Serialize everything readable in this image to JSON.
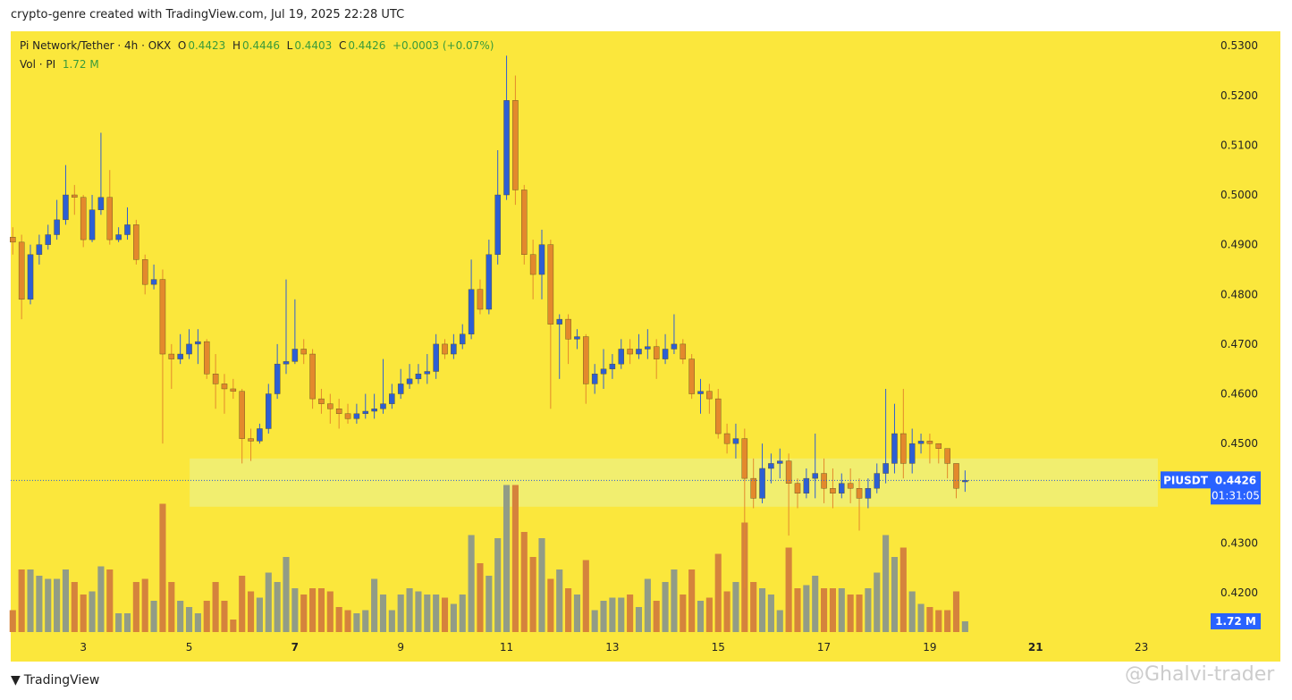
{
  "header": {
    "caption": "crypto-genre created with TradingView.com, Jul 19, 2025 22:28 UTC"
  },
  "chart_data": {
    "type": "candlestick",
    "title": "Pi Network/Tether · 4h · OKX",
    "ohlc_labels": [
      "O",
      "H",
      "L",
      "C"
    ],
    "change": "+0.0003 (+0.07%)",
    "volume_title": "Vol · PI",
    "volume_label": "1.72 M",
    "symbol": "PIUSDT",
    "countdown": "01:31:05",
    "background": "#fbe73c",
    "up_color": "#2d5fd3",
    "down_color": "#e3892c",
    "volume_up_color": "#929c86",
    "volume_down_color": "#d5833c",
    "zone_color": "#eeee78",
    "xlim": [
      1.628,
      24.156
    ],
    "ylim": [
      0.4121,
      0.5329
    ],
    "volume_ylim": [
      0,
      96
    ],
    "xticks": [
      3,
      5,
      7,
      9,
      11,
      13,
      15,
      17,
      19,
      21,
      23
    ],
    "xticks_bold": [
      7,
      21
    ],
    "yticks": [
      {
        "value": 0.42,
        "label": "0.4200"
      },
      {
        "value": 0.43,
        "label": "0.4300"
      },
      {
        "value": 0.44,
        "label": "0.4400"
      },
      {
        "value": 0.45,
        "label": "0.4500"
      },
      {
        "value": 0.46,
        "label": "0.4600"
      },
      {
        "value": 0.47,
        "label": "0.4700"
      },
      {
        "value": 0.48,
        "label": "0.4800"
      },
      {
        "value": 0.49,
        "label": "0.4900"
      },
      {
        "value": 0.5,
        "label": "0.5000"
      },
      {
        "value": 0.51,
        "label": "0.5100"
      },
      {
        "value": 0.52,
        "label": "0.5200"
      },
      {
        "value": 0.53,
        "label": "0.5300"
      }
    ],
    "zone": {
      "x": [
        5.01,
        23.31
      ],
      "y": [
        0.4373,
        0.447
      ]
    },
    "x": [
      1.6667,
      1.8333,
      2,
      2.1667,
      2.3333,
      2.5,
      2.6667,
      2.8333,
      3,
      3.1667,
      3.3333,
      3.5,
      3.6667,
      3.8333,
      4,
      4.1667,
      4.3333,
      4.5,
      4.6667,
      4.8333,
      5,
      5.1667,
      5.3333,
      5.5,
      5.6667,
      5.8333,
      6,
      6.1667,
      6.3333,
      6.5,
      6.6667,
      6.8333,
      7,
      7.1667,
      7.3333,
      7.5,
      7.6667,
      7.8333,
      8,
      8.1667,
      8.3333,
      8.5,
      8.6667,
      8.8333,
      9,
      9.1667,
      9.3333,
      9.5,
      9.6667,
      9.8333,
      10,
      10.1667,
      10.3333,
      10.5,
      10.6667,
      10.8333,
      11,
      11.1667,
      11.3333,
      11.5,
      11.6667,
      11.8333,
      12,
      12.1667,
      12.3333,
      12.5,
      12.6667,
      12.8333,
      13,
      13.1667,
      13.3333,
      13.5,
      13.6667,
      13.8333,
      14,
      14.1667,
      14.3333,
      14.5,
      14.6667,
      14.8333,
      15,
      15.1667,
      15.3333,
      15.5,
      15.6667,
      15.8333,
      16,
      16.1667,
      16.3333,
      16.5,
      16.6667,
      16.8333,
      17,
      17.1667,
      17.3333,
      17.5,
      17.6667,
      17.8333,
      18,
      18.1667,
      18.3333,
      18.5,
      18.6667,
      18.8333,
      19,
      19.1667,
      19.3333,
      19.5,
      19.6667
    ],
    "open": [
      0.4915,
      0.4905,
      0.479,
      0.488,
      0.49,
      0.492,
      0.495,
      0.5,
      0.4995,
      0.491,
      0.497,
      0.4995,
      0.491,
      0.492,
      0.494,
      0.487,
      0.482,
      0.483,
      0.468,
      0.467,
      0.468,
      0.47,
      0.4705,
      0.464,
      0.462,
      0.461,
      0.4605,
      0.451,
      0.4505,
      0.453,
      0.46,
      0.466,
      0.4665,
      0.469,
      0.468,
      0.459,
      0.458,
      0.457,
      0.456,
      0.455,
      0.456,
      0.4565,
      0.457,
      0.458,
      0.46,
      0.462,
      0.463,
      0.464,
      0.4645,
      0.47,
      0.468,
      0.47,
      0.472,
      0.481,
      0.477,
      0.488,
      0.5,
      0.519,
      0.501,
      0.488,
      0.484,
      0.49,
      0.474,
      0.475,
      0.471,
      0.4715,
      0.462,
      0.464,
      0.465,
      0.466,
      0.469,
      0.468,
      0.469,
      0.4695,
      0.467,
      0.469,
      0.47,
      0.467,
      0.46,
      0.4605,
      0.459,
      0.452,
      0.45,
      0.451,
      0.443,
      0.439,
      0.445,
      0.446,
      0.4465,
      0.442,
      0.44,
      0.443,
      0.444,
      0.441,
      0.44,
      0.442,
      0.441,
      0.439,
      0.441,
      0.444,
      0.446,
      0.452,
      0.446,
      0.45,
      0.4505,
      0.45,
      0.449,
      0.446,
      0.4423
    ],
    "high": [
      0.4935,
      0.492,
      0.49,
      0.492,
      0.494,
      0.499,
      0.506,
      0.502,
      0.5,
      0.5,
      0.5125,
      0.505,
      0.4935,
      0.4975,
      0.495,
      0.488,
      0.486,
      0.485,
      0.47,
      0.472,
      0.473,
      0.473,
      0.471,
      0.468,
      0.464,
      0.463,
      0.461,
      0.453,
      0.454,
      0.462,
      0.47,
      0.483,
      0.479,
      0.471,
      0.469,
      0.461,
      0.46,
      0.459,
      0.458,
      0.458,
      0.46,
      0.46,
      0.467,
      0.462,
      0.465,
      0.466,
      0.466,
      0.468,
      0.472,
      0.471,
      0.472,
      0.474,
      0.487,
      0.483,
      0.491,
      0.509,
      0.528,
      0.524,
      0.502,
      0.491,
      0.493,
      0.491,
      0.476,
      0.476,
      0.473,
      0.472,
      0.466,
      0.469,
      0.468,
      0.471,
      0.471,
      0.472,
      0.473,
      0.471,
      0.472,
      0.476,
      0.471,
      0.468,
      0.463,
      0.462,
      0.461,
      0.454,
      0.454,
      0.453,
      0.447,
      0.45,
      0.448,
      0.449,
      0.448,
      0.443,
      0.445,
      0.452,
      0.447,
      0.445,
      0.444,
      0.445,
      0.443,
      0.443,
      0.446,
      0.461,
      0.458,
      0.461,
      0.453,
      0.452,
      0.452,
      0.45,
      0.449,
      0.446,
      0.4446
    ],
    "low": [
      0.488,
      0.475,
      0.478,
      0.486,
      0.489,
      0.491,
      0.494,
      0.496,
      0.4895,
      0.4905,
      0.496,
      0.49,
      0.4905,
      0.491,
      0.486,
      0.48,
      0.481,
      0.45,
      0.461,
      0.466,
      0.467,
      0.466,
      0.463,
      0.457,
      0.456,
      0.459,
      0.446,
      0.4465,
      0.45,
      0.452,
      0.459,
      0.464,
      0.466,
      0.466,
      0.457,
      0.456,
      0.454,
      0.453,
      0.454,
      0.454,
      0.455,
      0.455,
      0.456,
      0.457,
      0.459,
      0.461,
      0.462,
      0.462,
      0.463,
      0.467,
      0.467,
      0.469,
      0.471,
      0.476,
      0.476,
      0.486,
      0.499,
      0.498,
      0.486,
      0.479,
      0.479,
      0.457,
      0.463,
      0.466,
      0.469,
      0.458,
      0.46,
      0.461,
      0.463,
      0.465,
      0.466,
      0.467,
      0.467,
      0.463,
      0.466,
      0.468,
      0.466,
      0.459,
      0.456,
      0.456,
      0.451,
      0.448,
      0.447,
      0.421,
      0.437,
      0.438,
      0.442,
      0.443,
      0.4315,
      0.437,
      0.439,
      0.439,
      0.438,
      0.437,
      0.439,
      0.438,
      0.4325,
      0.437,
      0.44,
      0.442,
      0.444,
      0.443,
      0.444,
      0.448,
      0.446,
      0.446,
      0.443,
      0.439,
      0.4403
    ],
    "close": [
      0.4905,
      0.479,
      0.488,
      0.49,
      0.492,
      0.495,
      0.5,
      0.4995,
      0.491,
      0.497,
      0.4995,
      0.491,
      0.492,
      0.494,
      0.487,
      0.482,
      0.483,
      0.468,
      0.467,
      0.468,
      0.47,
      0.4705,
      0.464,
      0.462,
      0.461,
      0.4605,
      0.451,
      0.4505,
      0.453,
      0.46,
      0.466,
      0.4665,
      0.469,
      0.468,
      0.459,
      0.458,
      0.457,
      0.456,
      0.455,
      0.456,
      0.4565,
      0.457,
      0.458,
      0.46,
      0.462,
      0.463,
      0.464,
      0.4645,
      0.47,
      0.468,
      0.47,
      0.472,
      0.481,
      0.477,
      0.488,
      0.5,
      0.519,
      0.501,
      0.488,
      0.484,
      0.49,
      0.474,
      0.475,
      0.471,
      0.4715,
      0.462,
      0.464,
      0.465,
      0.466,
      0.469,
      0.468,
      0.469,
      0.4695,
      0.467,
      0.469,
      0.47,
      0.467,
      0.46,
      0.4605,
      0.459,
      0.452,
      0.45,
      0.451,
      0.443,
      0.439,
      0.445,
      0.446,
      0.4465,
      0.442,
      0.44,
      0.443,
      0.444,
      0.441,
      0.44,
      0.442,
      0.441,
      0.439,
      0.441,
      0.444,
      0.446,
      0.452,
      0.446,
      0.45,
      0.4505,
      0.45,
      0.449,
      0.446,
      0.441,
      0.4426
    ],
    "volume": [
      3.5,
      10,
      10,
      9,
      8.5,
      8.5,
      10,
      8,
      6,
      6.5,
      10.5,
      10,
      3,
      3,
      8,
      8.5,
      5,
      20.5,
      8,
      5,
      4,
      3,
      5,
      8,
      5,
      2,
      9,
      6.5,
      5.5,
      9.5,
      8,
      12,
      7,
      6,
      7,
      7,
      6.5,
      4,
      3.5,
      3,
      3.5,
      8.5,
      6,
      3.5,
      6,
      7,
      6.5,
      6,
      6,
      5.5,
      4.5,
      6,
      15.5,
      11,
      9,
      15,
      23.5,
      23.5,
      16,
      12,
      15,
      8.5,
      10,
      7,
      6,
      11.5,
      3.5,
      5,
      5.5,
      5.5,
      6,
      4,
      8.5,
      5,
      8,
      10,
      6,
      10,
      5,
      5.5,
      12.5,
      6.5,
      8,
      17.5,
      8,
      7,
      6,
      3.5,
      13.5,
      7,
      7.5,
      9,
      7,
      7,
      7,
      6,
      6,
      7,
      9.5,
      15.5,
      12,
      13.5,
      6.5,
      4.5,
      4,
      3.5,
      3.5,
      6.5,
      1.72
    ]
  },
  "footer": {
    "brand": "TradingView",
    "watermark": "@Ghalvi-trader"
  }
}
